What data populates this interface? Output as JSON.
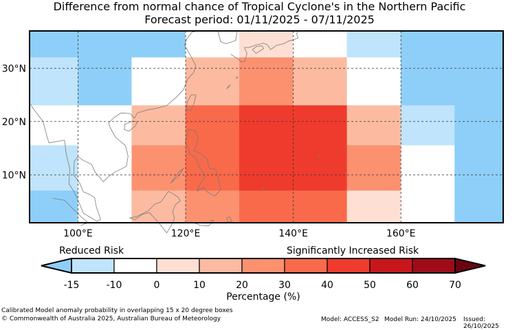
{
  "title": {
    "line1": "Difference from normal chance of Tropical Cyclone's in the Northern Pacific",
    "line2": "Forecast period: 01/11/2025 - 07/11/2025"
  },
  "colors": {
    "-15": "#8ecff9",
    "-10": "#bfe4fb",
    "0": "#ffffff",
    "10": "#fedfd3",
    "20": "#fcbba1",
    "30": "#fc9170",
    "40": "#f96a4a",
    "50": "#ee3b2d",
    "60": "#c8161d",
    "70": "#9e0c17",
    "over": "#6a0410"
  },
  "map": {
    "lon_range": [
      91,
      179
    ],
    "lat_range": [
      1,
      37
    ],
    "lon_ticks": [
      {
        "v": 100,
        "label": "100°E"
      },
      {
        "v": 120,
        "label": "120°E"
      },
      {
        "v": 140,
        "label": "140°E"
      },
      {
        "v": 160,
        "label": "160°E"
      }
    ],
    "lat_ticks": [
      {
        "v": 30,
        "label": "30°N"
      },
      {
        "v": 20,
        "label": "20°N"
      },
      {
        "v": 10,
        "label": "10°N"
      }
    ],
    "cells": [
      {
        "lon": [
          91,
          110
        ],
        "lat": [
          32,
          37
        ],
        "level": "-15"
      },
      {
        "lon": [
          110,
          120
        ],
        "lat": [
          32,
          37
        ],
        "level": "-15"
      },
      {
        "lon": [
          120,
          130
        ],
        "lat": [
          32,
          37
        ],
        "level": "0"
      },
      {
        "lon": [
          130,
          140
        ],
        "lat": [
          32,
          37
        ],
        "level": "10"
      },
      {
        "lon": [
          140,
          150
        ],
        "lat": [
          32,
          37
        ],
        "level": "0"
      },
      {
        "lon": [
          150,
          160
        ],
        "lat": [
          32,
          37
        ],
        "level": "-10"
      },
      {
        "lon": [
          160,
          179
        ],
        "lat": [
          32,
          37
        ],
        "level": "-15"
      },
      {
        "lon": [
          91,
          100
        ],
        "lat": [
          23,
          32
        ],
        "level": "-10"
      },
      {
        "lon": [
          100,
          110
        ],
        "lat": [
          23,
          32
        ],
        "level": "-15"
      },
      {
        "lon": [
          110,
          120
        ],
        "lat": [
          23,
          32
        ],
        "level": "0"
      },
      {
        "lon": [
          120,
          130
        ],
        "lat": [
          23,
          32
        ],
        "level": "20"
      },
      {
        "lon": [
          130,
          140
        ],
        "lat": [
          23,
          32
        ],
        "level": "30"
      },
      {
        "lon": [
          140,
          150
        ],
        "lat": [
          23,
          32
        ],
        "level": "20"
      },
      {
        "lon": [
          150,
          160
        ],
        "lat": [
          23,
          32
        ],
        "level": "0"
      },
      {
        "lon": [
          160,
          179
        ],
        "lat": [
          23,
          32
        ],
        "level": "-15"
      },
      {
        "lon": [
          91,
          110
        ],
        "lat": [
          15.5,
          23
        ],
        "level": "0"
      },
      {
        "lon": [
          110,
          120
        ],
        "lat": [
          15.5,
          23
        ],
        "level": "20"
      },
      {
        "lon": [
          120,
          130
        ],
        "lat": [
          15.5,
          23
        ],
        "level": "40"
      },
      {
        "lon": [
          130,
          150
        ],
        "lat": [
          15.5,
          23
        ],
        "level": "50"
      },
      {
        "lon": [
          150,
          160
        ],
        "lat": [
          15.5,
          23
        ],
        "level": "20"
      },
      {
        "lon": [
          160,
          170
        ],
        "lat": [
          15.5,
          23
        ],
        "level": "-10"
      },
      {
        "lon": [
          170,
          179
        ],
        "lat": [
          15.5,
          23
        ],
        "level": "-15"
      },
      {
        "lon": [
          91,
          100
        ],
        "lat": [
          7,
          15.5
        ],
        "level": "-10"
      },
      {
        "lon": [
          100,
          110
        ],
        "lat": [
          7,
          15.5
        ],
        "level": "0"
      },
      {
        "lon": [
          110,
          120
        ],
        "lat": [
          7,
          15.5
        ],
        "level": "30"
      },
      {
        "lon": [
          120,
          130
        ],
        "lat": [
          7,
          15.5
        ],
        "level": "40"
      },
      {
        "lon": [
          130,
          150
        ],
        "lat": [
          7,
          15.5
        ],
        "level": "50"
      },
      {
        "lon": [
          150,
          160
        ],
        "lat": [
          7,
          15.5
        ],
        "level": "30"
      },
      {
        "lon": [
          160,
          170
        ],
        "lat": [
          7,
          15.5
        ],
        "level": "0"
      },
      {
        "lon": [
          170,
          179
        ],
        "lat": [
          7,
          15.5
        ],
        "level": "-15"
      },
      {
        "lon": [
          91,
          100
        ],
        "lat": [
          1,
          7
        ],
        "level": "-15"
      },
      {
        "lon": [
          100,
          110
        ],
        "lat": [
          1,
          7
        ],
        "level": "0"
      },
      {
        "lon": [
          110,
          120
        ],
        "lat": [
          1,
          7
        ],
        "level": "20"
      },
      {
        "lon": [
          120,
          130
        ],
        "lat": [
          1,
          7
        ],
        "level": "30"
      },
      {
        "lon": [
          130,
          150
        ],
        "lat": [
          1,
          7
        ],
        "level": "40"
      },
      {
        "lon": [
          150,
          160
        ],
        "lat": [
          1,
          7
        ],
        "level": "10"
      },
      {
        "lon": [
          160,
          170
        ],
        "lat": [
          1,
          7
        ],
        "level": "0"
      },
      {
        "lon": [
          170,
          179
        ],
        "lat": [
          1,
          7
        ],
        "level": "-15"
      }
    ],
    "coastlines": [
      [
        [
          91,
          23.5
        ],
        [
          92,
          22
        ],
        [
          93.5,
          20
        ],
        [
          94.3,
          17
        ],
        [
          94.6,
          16
        ],
        [
          97.5,
          16.5
        ],
        [
          97.8,
          14
        ],
        [
          98.5,
          11
        ],
        [
          98.3,
          8.3
        ],
        [
          99.3,
          6.8
        ],
        [
          100.3,
          4.5
        ],
        [
          101,
          2.8
        ],
        [
          103.5,
          1.3
        ],
        [
          104.2,
          1.6
        ],
        [
          103.4,
          4
        ],
        [
          103.1,
          5.7
        ],
        [
          102.2,
          6.3
        ],
        [
          101,
          6.8
        ],
        [
          100.3,
          8.5
        ],
        [
          99.2,
          10
        ],
        [
          99.3,
          12.5
        ],
        [
          100,
          13.4
        ],
        [
          101,
          12.7
        ],
        [
          102.5,
          12
        ],
        [
          103.2,
          10.5
        ],
        [
          104.7,
          8.7
        ],
        [
          105.5,
          9.5
        ],
        [
          106.7,
          10.4
        ],
        [
          109,
          11.6
        ],
        [
          109.3,
          13.5
        ],
        [
          108.8,
          15.5
        ],
        [
          107,
          17
        ],
        [
          106,
          18.8
        ],
        [
          105.7,
          19.8
        ],
        [
          106.8,
          20.8
        ],
        [
          108,
          21.6
        ],
        [
          109.7,
          21.5
        ],
        [
          110.5,
          20.6
        ],
        [
          111,
          21.6
        ],
        [
          113,
          22.2
        ],
        [
          114.2,
          22.4
        ],
        [
          116.5,
          23
        ],
        [
          118.4,
          24.7
        ],
        [
          119.6,
          26
        ],
        [
          120.4,
          28
        ],
        [
          121.5,
          29.2
        ],
        [
          121.9,
          30.5
        ],
        [
          121.3,
          31.6
        ],
        [
          120.8,
          32.6
        ],
        [
          119.8,
          34.3
        ],
        [
          120.2,
          35.5
        ],
        [
          121.2,
          36.8
        ],
        [
          122.5,
          37
        ]
      ],
      [
        [
          108.6,
          18.5
        ],
        [
          109.5,
          18.2
        ],
        [
          110.6,
          19.1
        ],
        [
          111,
          19.9
        ],
        [
          110.2,
          20.1
        ],
        [
          108.7,
          19.5
        ],
        [
          108.6,
          18.5
        ]
      ],
      [
        [
          120.1,
          22.3
        ],
        [
          120.3,
          23.6
        ],
        [
          121,
          25
        ],
        [
          121.9,
          25
        ],
        [
          121.6,
          23.5
        ],
        [
          120.9,
          22
        ],
        [
          120.1,
          22.3
        ]
      ],
      [
        [
          120.4,
          18.5
        ],
        [
          121.7,
          18.3
        ],
        [
          122.3,
          17.2
        ],
        [
          122.1,
          15.8
        ],
        [
          121.5,
          14.5
        ],
        [
          122.8,
          14
        ],
        [
          124,
          12.9
        ],
        [
          124.3,
          11.3
        ],
        [
          125.6,
          11
        ],
        [
          126.1,
          9.3
        ],
        [
          126.5,
          7.2
        ],
        [
          125.4,
          6
        ],
        [
          124,
          6.8
        ],
        [
          123.3,
          7.6
        ],
        [
          122.1,
          6.9
        ],
        [
          122.8,
          8.5
        ],
        [
          123.7,
          9.8
        ],
        [
          122.5,
          11.6
        ],
        [
          121.9,
          13.2
        ],
        [
          120.7,
          13.9
        ],
        [
          120.6,
          14.9
        ],
        [
          119.9,
          16.1
        ],
        [
          120.4,
          17.5
        ],
        [
          120.4,
          18.5
        ]
      ],
      [
        [
          117.2,
          8.4
        ],
        [
          118.8,
          9.9
        ],
        [
          119.6,
          11.2
        ],
        [
          118.7,
          10.5
        ],
        [
          117.2,
          8.4
        ]
      ],
      [
        [
          115.4,
          4.9
        ],
        [
          116.8,
          6.9
        ],
        [
          117.7,
          6.4
        ],
        [
          118.6,
          5.8
        ],
        [
          119,
          5.1
        ],
        [
          118.1,
          4.4
        ],
        [
          117.6,
          3.2
        ],
        [
          117.9,
          1.8
        ],
        [
          117.5,
          0.8
        ],
        [
          116.5,
          -0.9
        ],
        [
          115,
          1
        ],
        [
          113.3,
          2.9
        ],
        [
          112,
          2.6
        ],
        [
          110.6,
          1.6
        ],
        [
          109.6,
          1.9
        ],
        [
          111,
          2.2
        ],
        [
          113,
          3.2
        ],
        [
          114.3,
          4.5
        ],
        [
          115.4,
          4.9
        ]
      ],
      [
        [
          95.3,
          5.6
        ],
        [
          97.5,
          5.2
        ],
        [
          99,
          3.7
        ],
        [
          100.6,
          2.1
        ],
        [
          101.9,
          1
        ],
        [
          100.5,
          0.5
        ]
      ],
      [
        [
          124.5,
          1.4
        ],
        [
          125.2,
          1.5
        ],
        [
          124.3,
          0.4
        ],
        [
          122.8,
          0.5
        ],
        [
          121,
          1.2
        ]
      ],
      [
        [
          128.2,
          2.1
        ],
        [
          128.6,
          1.2
        ],
        [
          127.9,
          1.1
        ],
        [
          127.6,
          1.9
        ],
        [
          128.2,
          2.1
        ]
      ],
      [
        [
          144.6,
          13.3
        ],
        [
          144.9,
          13.6
        ],
        [
          144.8,
          13.2
        ],
        [
          144.6,
          13.3
        ]
      ],
      [
        [
          134.3,
          7.3
        ],
        [
          134.6,
          7.6
        ],
        [
          134.5,
          7.1
        ],
        [
          134.3,
          7.3
        ]
      ],
      [
        [
          126,
          37
        ],
        [
          126.5,
          35
        ],
        [
          127.5,
          34.6
        ],
        [
          129.3,
          35.2
        ],
        [
          129.5,
          36.5
        ],
        [
          129.4,
          37
        ]
      ],
      [
        [
          128.4,
          32.6
        ],
        [
          129.9,
          31.6
        ],
        [
          130.3,
          31.2
        ],
        [
          131,
          31.3
        ],
        [
          131.4,
          32.8
        ],
        [
          130.9,
          33.9
        ],
        [
          131.8,
          33.9
        ],
        [
          132.9,
          34.3
        ],
        [
          134.4,
          34.7
        ],
        [
          135.2,
          34.4
        ],
        [
          135.8,
          33.5
        ],
        [
          136.9,
          34.3
        ],
        [
          138.2,
          34.6
        ],
        [
          139.1,
          35.1
        ],
        [
          139.9,
          35.3
        ],
        [
          140.9,
          35.7
        ],
        [
          140.6,
          36.5
        ],
        [
          140.9,
          37
        ]
      ],
      [
        [
          132.4,
          33.5
        ],
        [
          133.1,
          32.8
        ],
        [
          134.5,
          33.7
        ],
        [
          134.2,
          34.2
        ],
        [
          133.2,
          34.1
        ],
        [
          132.4,
          33.5
        ]
      ],
      [
        [
          127.6,
          26.1
        ],
        [
          128,
          26.5
        ],
        [
          128.3,
          26.9
        ],
        [
          127.8,
          26.4
        ],
        [
          127.6,
          26.1
        ]
      ],
      [
        [
          129.3,
          28.2
        ],
        [
          129.7,
          28.4
        ],
        [
          129.5,
          28.1
        ],
        [
          129.3,
          28.2
        ]
      ]
    ]
  },
  "colorbar": {
    "levels": [
      "-15",
      "-10",
      "0",
      "10",
      "20",
      "30",
      "40",
      "50",
      "60",
      "70"
    ],
    "tick_labels": [
      "-15",
      "-10",
      "0",
      "10",
      "20",
      "30",
      "40",
      "50",
      "60",
      "70"
    ],
    "xlabel": "Percentage (%)",
    "left_label": "Reduced Risk",
    "right_label": "Significantly Increased Risk"
  },
  "footer": {
    "caption": "Calibrated Model anomaly probability in overlapping 15 x 20 degree boxes",
    "copyright": "© Commonwealth of Australia 2025, Australian Bureau of Meteorology",
    "model": "Model: ACCESS_S2",
    "run": "Model Run: 24/10/2025",
    "issued": "Issued: 26/10/2025"
  }
}
